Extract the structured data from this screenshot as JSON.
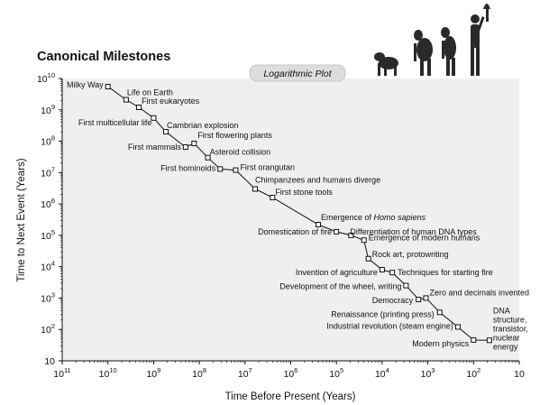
{
  "chart_data": {
    "type": "scatter",
    "title": "Canonical Milestones",
    "subtitle": "Logarithmic Plot",
    "xlabel": "Time Before Present (Years)",
    "ylabel": "Time to Next Event (Years)",
    "x_scale": "log-reversed",
    "y_scale": "log",
    "xlim_exp": [
      11,
      1
    ],
    "ylim_exp": [
      1,
      10
    ],
    "x_ticks": [
      {
        "base": "10",
        "exp": "11"
      },
      {
        "base": "10",
        "exp": "10"
      },
      {
        "base": "10",
        "exp": "9"
      },
      {
        "base": "10",
        "exp": "8"
      },
      {
        "base": "10",
        "exp": "7"
      },
      {
        "base": "10",
        "exp": "6"
      },
      {
        "base": "10",
        "exp": "5"
      },
      {
        "base": "10",
        "exp": "4"
      },
      {
        "base": "10",
        "exp": "3"
      },
      {
        "base": "10",
        "exp": "2"
      },
      {
        "base": "10",
        "exp": ""
      }
    ],
    "y_ticks": [
      {
        "base": "10",
        "exp": ""
      },
      {
        "base": "10",
        "exp": "2"
      },
      {
        "base": "10",
        "exp": "3"
      },
      {
        "base": "10",
        "exp": "4"
      },
      {
        "base": "10",
        "exp": "5"
      },
      {
        "base": "10",
        "exp": "6"
      },
      {
        "base": "10",
        "exp": "7"
      },
      {
        "base": "10",
        "exp": "8"
      },
      {
        "base": "10",
        "exp": "9"
      },
      {
        "base": "10",
        "exp": "10"
      }
    ],
    "points": [
      {
        "label": "Milky Way",
        "x": 10000000000.0,
        "y": 5500000000.0
      },
      {
        "label": "Life on Earth",
        "x": 4000000000.0,
        "y": 2100000000.0
      },
      {
        "label": "First eukaryotes",
        "x": 2100000000.0,
        "y": 1200000000.0
      },
      {
        "label": "First multicellular life",
        "x": 1000000000.0,
        "y": 550000000.0
      },
      {
        "label": "Cambrian explosion",
        "x": 540000000.0,
        "y": 200000000.0
      },
      {
        "label": "First mammals",
        "x": 200000000.0,
        "y": 65000000.0
      },
      {
        "label": "First flowering plants",
        "x": 130000000.0,
        "y": 85000000.0
      },
      {
        "label": "Asteroid collision",
        "x": 65000000.0,
        "y": 30000000.0
      },
      {
        "label": "First hominoids",
        "x": 35000000.0,
        "y": 13000000.0
      },
      {
        "label": "First orangutan",
        "x": 16000000.0,
        "y": 12000000.0
      },
      {
        "label": "Chimpanzees and humans diverge",
        "x": 6000000.0,
        "y": 3000000.0
      },
      {
        "label": "First stone tools",
        "x": 2500000.0,
        "y": 1600000.0
      },
      {
        "label": "Emergence of Homo sapiens",
        "x": 250000.0,
        "y": 220000.0
      },
      {
        "label": "Domestication of fire",
        "x": 100000.0,
        "y": 130000.0
      },
      {
        "label": "Differentiation of human DNA types",
        "x": 48000.0,
        "y": 100000.0
      },
      {
        "label": "Emergence of modern humans",
        "x": 25000.0,
        "y": 70000.0
      },
      {
        "label": "Rock art, protowriting",
        "x": 20000.0,
        "y": 18000.0
      },
      {
        "label": "Invention of agriculture",
        "x": 10000.0,
        "y": 8000.0
      },
      {
        "label": "Techniques for starting fire",
        "x": 6000.0,
        "y": 6500.0
      },
      {
        "label": "Development of the wheel, writing",
        "x": 3000.0,
        "y": 2500.0
      },
      {
        "label": "Democracy",
        "x": 1600.0,
        "y": 900.0
      },
      {
        "label": "Zero and decimals invented",
        "x": 1100.0,
        "y": 1000.0
      },
      {
        "label": "Renaissance (printing press)",
        "x": 550.0,
        "y": 350.0
      },
      {
        "label": "Industrial revolution (steam engine)",
        "x": 220.0,
        "y": 120.0
      },
      {
        "label": "Modern physics",
        "x": 100.0,
        "y": 46.0
      },
      {
        "label": "DNA structure, transistor, nuclear energy",
        "x": 45.0,
        "y": 45.0
      }
    ],
    "grid": false,
    "legend": "none"
  }
}
